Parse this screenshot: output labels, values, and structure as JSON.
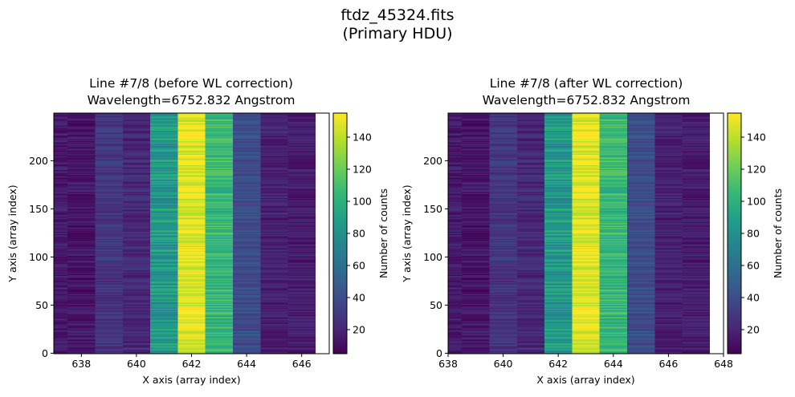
{
  "figure": {
    "suptitle_line1": "ftdz_45324.fits",
    "suptitle_line2": "(Primary HDU)"
  },
  "chart_data": [
    {
      "type": "heatmap",
      "title_line1": "Line #7/8 (before WL correction)",
      "title_line2": "Wavelength=6752.832 Angstrom",
      "xlabel": "X axis (array index)",
      "ylabel": "Y axis (array index)",
      "xlim": [
        637,
        647
      ],
      "ylim": [
        -0.5,
        249.5
      ],
      "xticks": [
        638,
        640,
        642,
        644,
        646
      ],
      "yticks": [
        0,
        50,
        100,
        150,
        200
      ],
      "columns": [
        637,
        638,
        639,
        640,
        641,
        642,
        643,
        644,
        645,
        646
      ],
      "column_mean_counts": [
        15,
        14,
        28,
        22,
        85,
        150,
        105,
        40,
        18,
        16
      ],
      "rows": 250,
      "colormap": "viridis",
      "colorbar": {
        "label": "Number of counts",
        "vmin": 5,
        "vmax": 155,
        "ticks": [
          20,
          40,
          60,
          80,
          100,
          120,
          140
        ]
      }
    },
    {
      "type": "heatmap",
      "title_line1": "Line #7/8 (after WL correction)",
      "title_line2": "Wavelength=6752.832 Angstrom",
      "xlabel": "X axis (array index)",
      "ylabel": "Y axis (array index)",
      "xlim": [
        638,
        648
      ],
      "ylim": [
        -0.5,
        249.5
      ],
      "xticks": [
        638,
        640,
        642,
        644,
        646,
        648
      ],
      "yticks": [
        0,
        50,
        100,
        150,
        200
      ],
      "columns": [
        638,
        639,
        640,
        641,
        642,
        643,
        644,
        645,
        646,
        647
      ],
      "column_mean_counts": [
        15,
        14,
        28,
        22,
        85,
        150,
        105,
        40,
        18,
        16
      ],
      "rows": 250,
      "colormap": "viridis",
      "colorbar": {
        "label": "Number of counts",
        "vmin": 5,
        "vmax": 155,
        "ticks": [
          20,
          40,
          60,
          80,
          100,
          120,
          140
        ]
      }
    }
  ]
}
